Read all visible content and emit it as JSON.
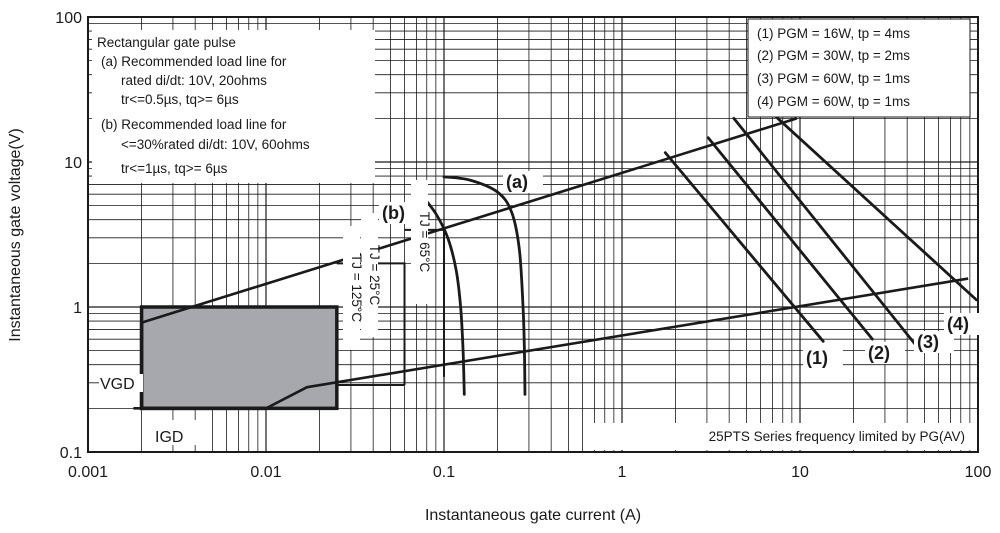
{
  "chart_data": {
    "type": "line",
    "xscale": "log",
    "yscale": "log",
    "xlim": [
      0.001,
      100
    ],
    "ylim": [
      0.1,
      100
    ],
    "xlabel": "Instantaneous gate current (A)",
    "ylabel": "Instantaneous gate voltage(V)",
    "x_ticks": [
      {
        "value": 0.001,
        "label": "0.001"
      },
      {
        "value": 0.01,
        "label": "0.01"
      },
      {
        "value": 0.1,
        "label": "0.1"
      },
      {
        "value": 1,
        "label": "1"
      },
      {
        "value": 10,
        "label": "10"
      },
      {
        "value": 100,
        "label": "100"
      }
    ],
    "y_ticks": [
      {
        "value": 0.1,
        "label": "0.1"
      },
      {
        "value": 1,
        "label": "1"
      },
      {
        "value": 10,
        "label": "10"
      },
      {
        "value": 100,
        "label": "100"
      }
    ],
    "grid": true,
    "notes": [
      "Rectangular gate pulse",
      "(a) Recommended load line for",
      "rated di/dt: 10V, 20ohms",
      "tr<=0.5µs, tq>= 6µs",
      "(b) Recommended load line for",
      "<=30%rated di/dt: 10V, 60ohms",
      "tr<=1µs, tq>= 6µs"
    ],
    "legend": {
      "position": "top-right",
      "entries": [
        "(1) PGM = 16W, tp = 4ms",
        "(2) PGM = 30W, tp = 2ms",
        "(3) PGM = 60W, tp = 1ms",
        "(4) PGM = 60W, tp = 1ms"
      ]
    },
    "bottom_note": "25PTS Series frequency limited by PG(AV)",
    "series": [
      {
        "name": "(a)",
        "points": [
          [
            0.1,
            7.9
          ],
          [
            0.14,
            7.5
          ],
          [
            0.2,
            6.2
          ],
          [
            0.24,
            4.5
          ],
          [
            0.265,
            2.5
          ],
          [
            0.278,
            1.0
          ],
          [
            0.283,
            0.5
          ],
          [
            0.285,
            0.25
          ]
        ]
      },
      {
        "name": "(b)",
        "points": [
          [
            0.075,
            5.9
          ],
          [
            0.09,
            4.4
          ],
          [
            0.105,
            3.0
          ],
          [
            0.117,
            1.8
          ],
          [
            0.124,
            1.0
          ],
          [
            0.128,
            0.5
          ],
          [
            0.13,
            0.25
          ]
        ]
      },
      {
        "name": "(1)",
        "points": [
          [
            1.75,
            11.6
          ],
          [
            13.5,
            0.58
          ]
        ]
      },
      {
        "name": "(2)",
        "points": [
          [
            3.05,
            14.7
          ],
          [
            25.5,
            0.6
          ]
        ]
      },
      {
        "name": "(3)",
        "points": [
          [
            4.25,
            20.0
          ],
          [
            44.0,
            0.56
          ]
        ]
      },
      {
        "name": "(4)",
        "points": [
          [
            6.3,
            24.3
          ],
          [
            98,
            1.12
          ]
        ]
      }
    ],
    "load_lines": [
      {
        "name": "upper",
        "points": [
          [
            0.002,
            0.78
          ],
          [
            9.6,
            20.0
          ]
        ]
      },
      {
        "name": "lower",
        "points": [
          [
            0.0018,
            0.2
          ],
          [
            0.01,
            0.2
          ],
          [
            0.017,
            0.28
          ],
          [
            88,
            1.57
          ]
        ]
      }
    ],
    "regions": [
      {
        "label": "",
        "x": [
          0.002,
          0.025
        ],
        "y": [
          0.2,
          1.0
        ],
        "filled": true
      },
      {
        "label": "TJ = 125°C",
        "x": [
          0.025,
          0.025
        ],
        "y": [
          0.25,
          1.0
        ]
      },
      {
        "label": "TJ = 25°C",
        "x": [
          0.025,
          0.06
        ],
        "y": [
          0.29,
          2.0
        ]
      },
      {
        "label": "TJ = 65°C",
        "x": [
          0.06,
          0.1
        ],
        "y": [
          0.33,
          3.4
        ]
      }
    ],
    "region_labels": {
      "vgd": "VGD",
      "igd": "IGD"
    },
    "tj_labels": [
      "TJ = 125°C",
      "TJ = 25°C",
      "TJ = 65°C"
    ]
  }
}
